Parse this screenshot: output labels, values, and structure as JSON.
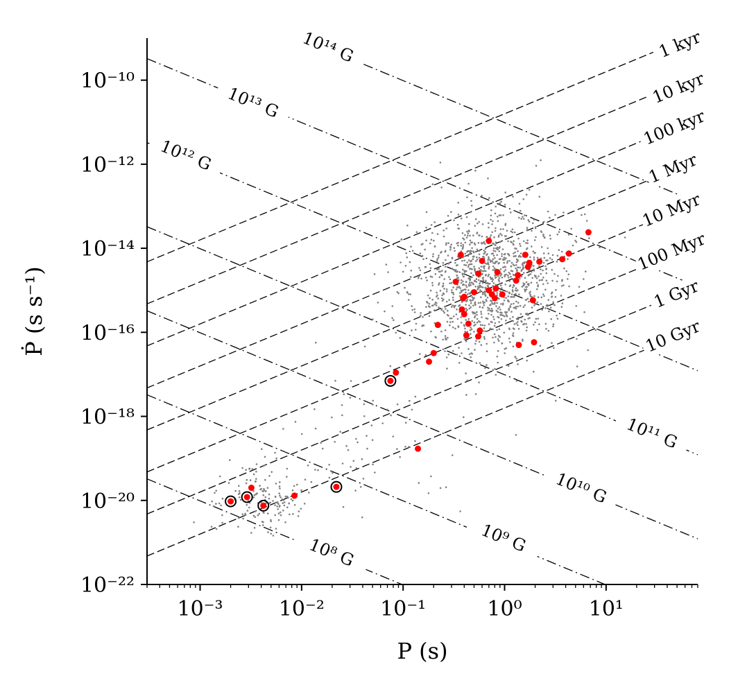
{
  "chart_data": {
    "type": "scatter",
    "xlabel": "P (s)",
    "ylabel": "Ṗ (s s⁻¹)",
    "xscale": "log",
    "yscale": "log",
    "xlim": [
      0.0003,
      80
    ],
    "ylim": [
      1e-22,
      1e-09
    ],
    "x_ticks": [
      {
        "exp": -3,
        "value": 0.001
      },
      {
        "exp": -2,
        "value": 0.01
      },
      {
        "exp": -1,
        "value": 0.1
      },
      {
        "exp": 0,
        "value": 1
      },
      {
        "exp": 1,
        "value": 10
      }
    ],
    "y_ticks": [
      {
        "exp": -10,
        "value": 1e-10
      },
      {
        "exp": -12,
        "value": 1e-12
      },
      {
        "exp": -14,
        "value": 1e-14
      },
      {
        "exp": -16,
        "value": 1e-16
      },
      {
        "exp": -18,
        "value": 1e-18
      },
      {
        "exp": -20,
        "value": 1e-20
      },
      {
        "exp": -22,
        "value": 1e-22
      }
    ],
    "characteristic_age_lines": [
      {
        "label": "1 kyr",
        "age_yr": 1000.0
      },
      {
        "label": "10 kyr",
        "age_yr": 10000.0
      },
      {
        "label": "100 kyr",
        "age_yr": 100000.0
      },
      {
        "label": "1 Myr",
        "age_yr": 1000000.0
      },
      {
        "label": "10 Myr",
        "age_yr": 10000000.0
      },
      {
        "label": "100 Myr",
        "age_yr": 100000000.0
      },
      {
        "label": "1 Gyr",
        "age_yr": 1000000000.0
      },
      {
        "label": "10 Gyr",
        "age_yr": 10000000000.0
      }
    ],
    "magnetic_field_lines": [
      {
        "exp": 14,
        "unit": "G",
        "field_G": 100000000000000.0
      },
      {
        "exp": 13,
        "unit": "G",
        "field_G": 10000000000000.0
      },
      {
        "exp": 12,
        "unit": "G",
        "field_G": 1000000000000.0
      },
      {
        "exp": 11,
        "unit": "G",
        "field_G": 100000000000.0
      },
      {
        "exp": 10,
        "unit": "G",
        "field_G": 10000000000.0
      },
      {
        "exp": 9,
        "unit": "G",
        "field_G": 1000000000.0
      },
      {
        "exp": 8,
        "unit": "G",
        "field_G": 100000000.0
      }
    ],
    "background_population": {
      "color": "#808080",
      "description_count_approx": 1500,
      "clusters": [
        {
          "log_p_center": -0.15,
          "log_pdot_center": -14.8,
          "sigma_log_p": 0.38,
          "sigma_log_pdot": 0.85,
          "weight": 0.84
        },
        {
          "log_p_center": -2.4,
          "log_pdot_center": -20.0,
          "sigma_log_p": 0.22,
          "sigma_log_pdot": 0.45,
          "weight": 0.11
        },
        {
          "log_p_center": -1.3,
          "log_pdot_center": -18.5,
          "sigma_log_p": 0.45,
          "sigma_log_pdot": 0.9,
          "weight": 0.05
        }
      ]
    },
    "highlighted_points": {
      "color": "#ff0000",
      "points": [
        {
          "p": 0.085,
          "pdot": 1.1e-17
        },
        {
          "p": 0.22,
          "pdot": 1.5e-16
        },
        {
          "p": 0.2,
          "pdot": 3.2e-17
        },
        {
          "p": 0.18,
          "pdot": 2e-17
        },
        {
          "p": 0.14,
          "pdot": 1.7e-19
        },
        {
          "p": 0.0085,
          "pdot": 1.3e-20
        },
        {
          "p": 0.0032,
          "pdot": 2e-20
        },
        {
          "p": 0.37,
          "pdot": 7e-15
        },
        {
          "p": 0.33,
          "pdot": 1.6e-15
        },
        {
          "p": 0.39,
          "pdot": 6.5e-16
        },
        {
          "p": 0.4,
          "pdot": 2.7e-16
        },
        {
          "p": 0.38,
          "pdot": 3.5e-16
        },
        {
          "p": 0.42,
          "pdot": 8.5e-17
        },
        {
          "p": 0.44,
          "pdot": 1.6e-16
        },
        {
          "p": 0.4,
          "pdot": 7e-16
        },
        {
          "p": 0.5,
          "pdot": 9e-16
        },
        {
          "p": 0.55,
          "pdot": 2.5e-15
        },
        {
          "p": 0.57,
          "pdot": 1.1e-16
        },
        {
          "p": 0.55,
          "pdot": 8e-17
        },
        {
          "p": 0.6,
          "pdot": 5e-15
        },
        {
          "p": 0.7,
          "pdot": 1.5e-14
        },
        {
          "p": 0.7,
          "pdot": 1e-15
        },
        {
          "p": 0.75,
          "pdot": 8e-16
        },
        {
          "p": 0.8,
          "pdot": 6.5e-16
        },
        {
          "p": 0.82,
          "pdot": 1.1e-15
        },
        {
          "p": 0.85,
          "pdot": 2.7e-15
        },
        {
          "p": 0.95,
          "pdot": 8e-16
        },
        {
          "p": 1.3,
          "pdot": 1.7e-15
        },
        {
          "p": 1.35,
          "pdot": 2.3e-15
        },
        {
          "p": 1.38,
          "pdot": 5e-17
        },
        {
          "p": 1.6,
          "pdot": 7e-15
        },
        {
          "p": 1.7,
          "pdot": 3.6e-15
        },
        {
          "p": 1.75,
          "pdot": 4.5e-15
        },
        {
          "p": 1.9,
          "pdot": 5.8e-16
        },
        {
          "p": 1.95,
          "pdot": 5.8e-17
        },
        {
          "p": 2.2,
          "pdot": 4.8e-15
        },
        {
          "p": 3.7,
          "pdot": 5.5e-15
        },
        {
          "p": 4.3,
          "pdot": 7.5e-15
        },
        {
          "p": 6.7,
          "pdot": 2.4e-14
        }
      ]
    },
    "circled_points": {
      "color": "#ff0000",
      "ring_color": "#000000",
      "points": [
        {
          "p": 0.075,
          "pdot": 7e-18
        },
        {
          "p": 0.022,
          "pdot": 2.1e-20
        },
        {
          "p": 0.002,
          "pdot": 9.5e-21
        },
        {
          "p": 0.0029,
          "pdot": 1.2e-20
        },
        {
          "p": 0.0042,
          "pdot": 7.5e-21
        }
      ]
    }
  }
}
